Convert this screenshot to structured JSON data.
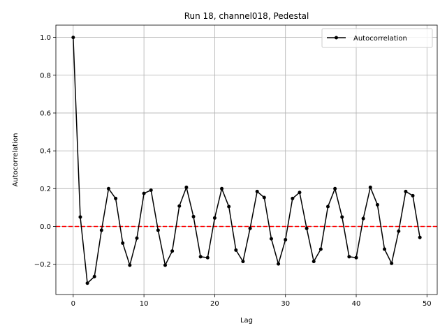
{
  "chart_data": {
    "type": "line",
    "title": "Run 18, channel018, Pedestal",
    "xlabel": "Lag",
    "ylabel": "Autocorrelation",
    "xlim": [
      -2.45,
      51.45
    ],
    "ylim": [
      -0.36,
      1.065
    ],
    "xticks": [
      0,
      10,
      20,
      30,
      40,
      50
    ],
    "xtick_labels": [
      "0",
      "10",
      "20",
      "30",
      "40",
      "50"
    ],
    "yticks": [
      -0.2,
      0.0,
      0.2,
      0.4,
      0.6,
      0.8,
      1.0
    ],
    "ytick_labels": [
      "−0.2",
      "0.0",
      "0.2",
      "0.4",
      "0.6",
      "0.8",
      "1.0"
    ],
    "grid": true,
    "legend": {
      "position": "top-right",
      "label": "Autocorrelation"
    },
    "reference_line": {
      "y": 0.0,
      "color": "#ff0000",
      "style": "dashed"
    },
    "series": [
      {
        "name": "Autocorrelation",
        "color": "#000000",
        "marker": "circle",
        "x": [
          0,
          1,
          2,
          3,
          4,
          5,
          6,
          7,
          8,
          9,
          10,
          11,
          12,
          13,
          14,
          15,
          16,
          17,
          18,
          19,
          20,
          21,
          22,
          23,
          24,
          25,
          26,
          27,
          28,
          29,
          30,
          31,
          32,
          33,
          34,
          35,
          36,
          37,
          38,
          39,
          40,
          41,
          42,
          43,
          44,
          45,
          46,
          47,
          48,
          49
        ],
        "values": [
          1.0,
          0.05,
          -0.3,
          -0.265,
          -0.02,
          0.2,
          0.148,
          -0.088,
          -0.205,
          -0.062,
          0.175,
          0.192,
          -0.02,
          -0.205,
          -0.13,
          0.108,
          0.207,
          0.052,
          -0.16,
          -0.165,
          0.045,
          0.2,
          0.105,
          -0.125,
          -0.185,
          -0.01,
          0.185,
          0.153,
          -0.065,
          -0.198,
          -0.07,
          0.148,
          0.18,
          -0.01,
          -0.185,
          -0.12,
          0.105,
          0.2,
          0.05,
          -0.16,
          -0.165,
          0.042,
          0.207,
          0.115,
          -0.12,
          -0.195,
          -0.025,
          0.185,
          0.163,
          -0.058
        ]
      }
    ]
  }
}
